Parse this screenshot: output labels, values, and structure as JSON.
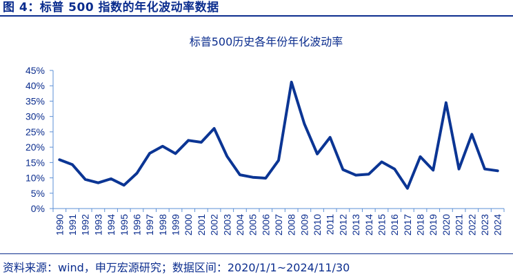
{
  "header": {
    "figure_title": "图 4：标普 500 指数的年化波动率数据"
  },
  "footer": {
    "source": "资料来源：wind，申万宏源研究；数据区间：2020/1/1~2024/11/30"
  },
  "colors": {
    "brand_blue": "#0b2d8e",
    "line": "#0b3594",
    "axis": "#5b8fd6"
  },
  "chart_data": {
    "type": "line",
    "title": "标普500历史各年份年化波动率",
    "xlabel": "",
    "ylabel": "",
    "ylim": [
      0,
      45
    ],
    "yticks": [
      "0%",
      "5%",
      "10%",
      "15%",
      "20%",
      "25%",
      "30%",
      "35%",
      "40%",
      "45%"
    ],
    "grid": false,
    "legend": null,
    "categories": [
      "1990",
      "1991",
      "1992",
      "1993",
      "1994",
      "1995",
      "1996",
      "1997",
      "1998",
      "1999",
      "2000",
      "2001",
      "2002",
      "2003",
      "2004",
      "2005",
      "2006",
      "2007",
      "2008",
      "2009",
      "2010",
      "2011",
      "2012",
      "2013",
      "2014",
      "2015",
      "2016",
      "2017",
      "2018",
      "2019",
      "2020",
      "2021",
      "2022",
      "2023",
      "2024"
    ],
    "series": [
      {
        "name": "标普500年化波动率",
        "unit": "%",
        "values": [
          15.9,
          14.3,
          9.5,
          8.4,
          9.7,
          7.6,
          11.5,
          18.0,
          20.3,
          17.9,
          22.2,
          21.6,
          26.1,
          17.0,
          11.0,
          10.2,
          9.9,
          15.7,
          41.2,
          27.6,
          17.8,
          23.2,
          12.7,
          10.9,
          11.2,
          15.2,
          12.9,
          6.6,
          16.9,
          12.5,
          34.5,
          12.9,
          24.2,
          12.9,
          12.3
        ]
      }
    ]
  }
}
